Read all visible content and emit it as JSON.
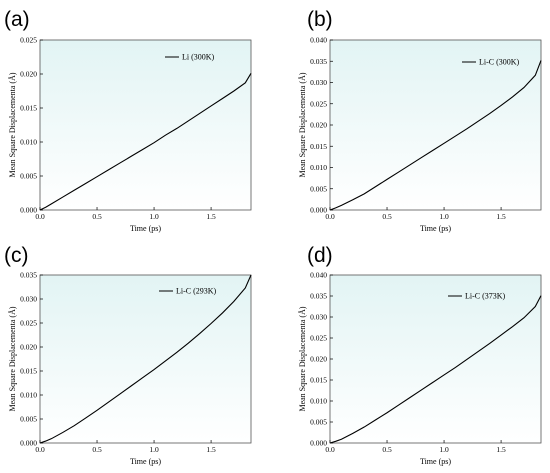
{
  "figure": {
    "background": "#ffffff"
  },
  "style": {
    "plot_bg_top": "#e2f4f4",
    "plot_bg_bottom": "#ffffff",
    "line_color": "#000000"
  },
  "chart_data": [
    {
      "panel": "(a)",
      "type": "line",
      "xlabel": "Time (ps)",
      "ylabel": "Mean Square Displacementa (Å)",
      "xlim": [
        0,
        1.85
      ],
      "ylim": [
        0,
        0.025
      ],
      "xticks": [
        "0.0",
        "0.5",
        "1.0",
        "1.5"
      ],
      "xtick_values": [
        0,
        0.5,
        1.0,
        1.5
      ],
      "yticks": [
        "0.000",
        "0.005",
        "0.010",
        "0.015",
        "0.020",
        "0.025"
      ],
      "ytick_values": [
        0,
        0.005,
        0.01,
        0.015,
        0.02,
        0.025
      ],
      "legend_position": "top-right",
      "series": [
        {
          "name": "Li (300K)",
          "x": [
            0,
            0.05,
            0.1,
            0.2,
            0.3,
            0.4,
            0.5,
            0.6,
            0.7,
            0.8,
            0.9,
            1.0,
            1.1,
            1.2,
            1.3,
            1.4,
            1.5,
            1.6,
            1.7,
            1.8,
            1.85
          ],
          "y": [
            0,
            0.0004,
            0.0009,
            0.0019,
            0.0029,
            0.0039,
            0.0049,
            0.0059,
            0.0069,
            0.0079,
            0.0089,
            0.0099,
            0.011,
            0.012,
            0.0131,
            0.0142,
            0.0153,
            0.0164,
            0.0175,
            0.0187,
            0.0201
          ]
        }
      ]
    },
    {
      "panel": "(b)",
      "type": "line",
      "xlabel": "Time (ps)",
      "ylabel": "Mean Square Displacementa (Å)",
      "xlim": [
        0,
        1.85
      ],
      "ylim": [
        0,
        0.04
      ],
      "xticks": [
        "0.0",
        "0.5",
        "1.0",
        "1.5"
      ],
      "xtick_values": [
        0,
        0.5,
        1.0,
        1.5
      ],
      "yticks": [
        "0.000",
        "0.005",
        "0.010",
        "0.015",
        "0.020",
        "0.025",
        "0.030",
        "0.035",
        "0.040"
      ],
      "ytick_values": [
        0,
        0.005,
        0.01,
        0.015,
        0.02,
        0.025,
        0.03,
        0.035,
        0.04
      ],
      "legend_position": "top-right",
      "series": [
        {
          "name": "Li-C (300K)",
          "x": [
            0,
            0.05,
            0.1,
            0.2,
            0.3,
            0.4,
            0.5,
            0.6,
            0.7,
            0.8,
            0.9,
            1.0,
            1.1,
            1.2,
            1.3,
            1.4,
            1.5,
            1.6,
            1.7,
            1.8,
            1.85
          ],
          "y": [
            0,
            0.0005,
            0.0011,
            0.0024,
            0.0038,
            0.0055,
            0.0072,
            0.0089,
            0.0106,
            0.0123,
            0.014,
            0.0157,
            0.0174,
            0.0191,
            0.0209,
            0.0227,
            0.0246,
            0.0266,
            0.0288,
            0.0317,
            0.0352
          ]
        }
      ]
    },
    {
      "panel": "(c)",
      "type": "line",
      "xlabel": "Time (ps)",
      "ylabel": "Mean Square Displacementa (Å)",
      "xlim": [
        0,
        1.85
      ],
      "ylim": [
        0,
        0.035
      ],
      "xticks": [
        "0.0",
        "0.5",
        "1.0",
        "1.5"
      ],
      "xtick_values": [
        0,
        0.5,
        1.0,
        1.5
      ],
      "yticks": [
        "0.000",
        "0.005",
        "0.010",
        "0.015",
        "0.020",
        "0.025",
        "0.030",
        "0.035"
      ],
      "ytick_values": [
        0,
        0.005,
        0.01,
        0.015,
        0.02,
        0.025,
        0.03,
        0.035
      ],
      "legend_position": "top-right",
      "series": [
        {
          "name": "Li-C (293K)",
          "x": [
            0,
            0.05,
            0.1,
            0.2,
            0.3,
            0.4,
            0.5,
            0.6,
            0.7,
            0.8,
            0.9,
            1.0,
            1.1,
            1.2,
            1.3,
            1.4,
            1.5,
            1.6,
            1.7,
            1.8,
            1.85
          ],
          "y": [
            0,
            0.0004,
            0.0009,
            0.0022,
            0.0036,
            0.0052,
            0.0068,
            0.0085,
            0.0102,
            0.0119,
            0.0136,
            0.0153,
            0.0171,
            0.0189,
            0.0208,
            0.0228,
            0.0249,
            0.0271,
            0.0295,
            0.0323,
            0.035
          ]
        }
      ]
    },
    {
      "panel": "(d)",
      "type": "line",
      "xlabel": "Time (ps)",
      "ylabel": "Mean Square Displacementa (Å)",
      "xlim": [
        0,
        1.85
      ],
      "ylim": [
        0,
        0.04
      ],
      "xticks": [
        "0.0",
        "0.5",
        "1.0",
        "1.5"
      ],
      "xtick_values": [
        0,
        0.5,
        1.0,
        1.5
      ],
      "yticks": [
        "0.000",
        "0.005",
        "0.010",
        "0.015",
        "0.020",
        "0.025",
        "0.030",
        "0.035",
        "0.040"
      ],
      "ytick_values": [
        0,
        0.005,
        0.01,
        0.015,
        0.02,
        0.025,
        0.03,
        0.035,
        0.04
      ],
      "legend_position": "top-right",
      "series": [
        {
          "name": "Li-C (373K)",
          "x": [
            0,
            0.05,
            0.1,
            0.2,
            0.3,
            0.4,
            0.5,
            0.6,
            0.7,
            0.8,
            0.9,
            1.0,
            1.1,
            1.2,
            1.3,
            1.4,
            1.5,
            1.6,
            1.7,
            1.8,
            1.85
          ],
          "y": [
            0,
            0.0004,
            0.0009,
            0.0023,
            0.0038,
            0.0055,
            0.0072,
            0.009,
            0.0108,
            0.0126,
            0.0144,
            0.0162,
            0.018,
            0.0199,
            0.0218,
            0.0237,
            0.0257,
            0.0277,
            0.0298,
            0.0325,
            0.0351
          ]
        }
      ]
    }
  ]
}
